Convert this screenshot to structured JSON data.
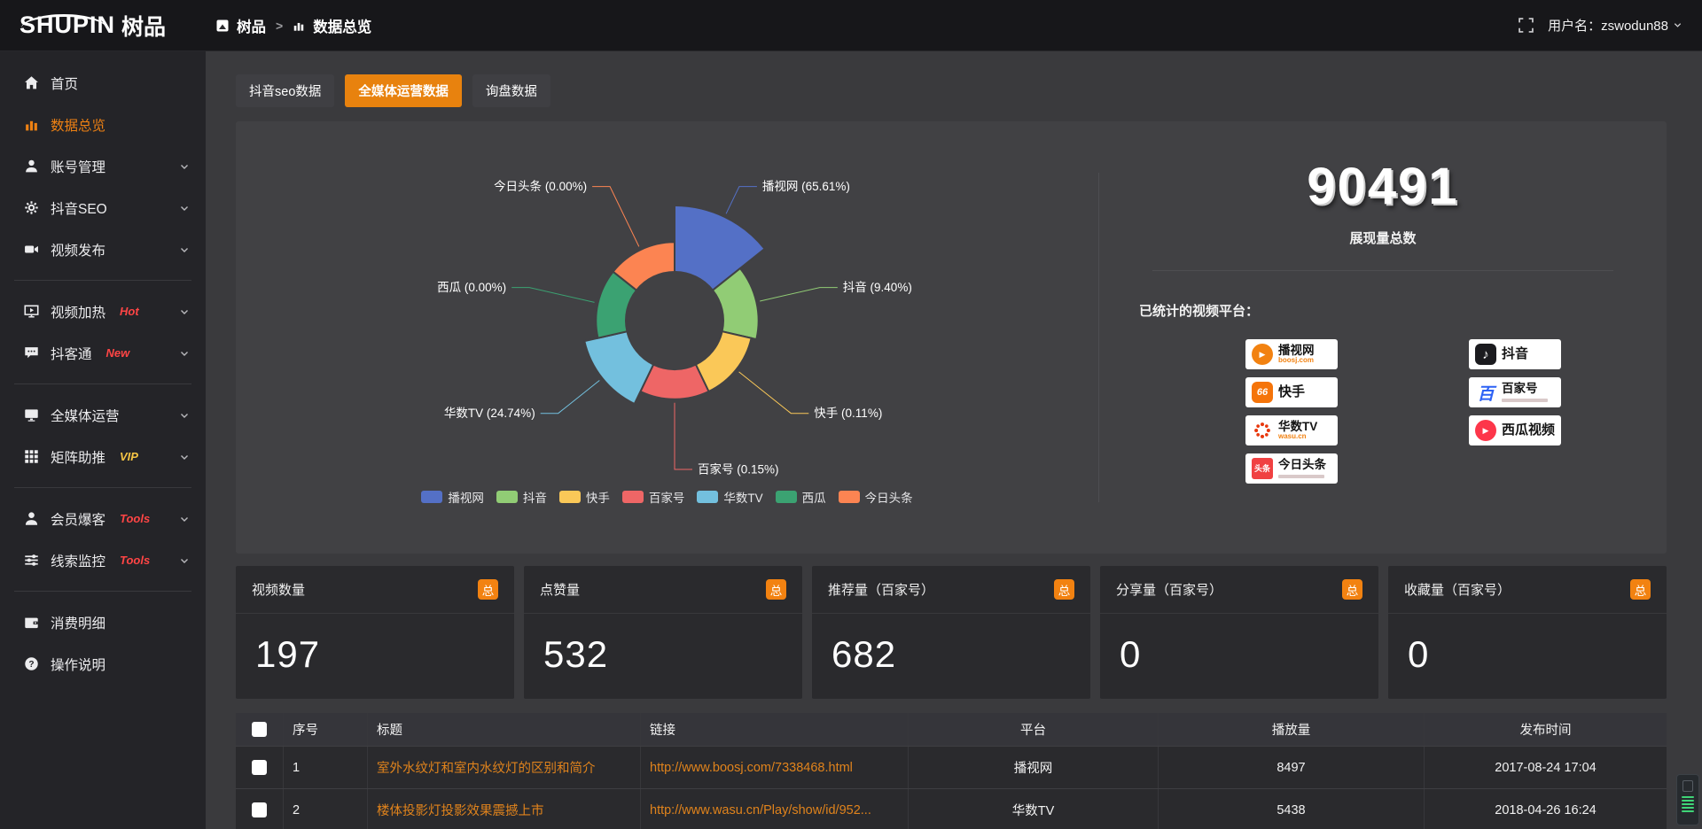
{
  "topbar": {
    "logo_en": "SHUPIN",
    "logo_cn": "树品",
    "breadcrumb": [
      {
        "label": "树品",
        "icon": "brand-icon"
      },
      {
        "label": "数据总览",
        "icon": "bar-chart-icon"
      }
    ],
    "breadcrumb_separator": ">",
    "username": "用户名：zswodun88"
  },
  "sidebar": {
    "groups": [
      {
        "items": [
          {
            "id": "home",
            "label": "首页",
            "icon": "home-icon",
            "icon_key": "home"
          },
          {
            "id": "data-overview",
            "label": "数据总览",
            "icon": "bar-chart-icon",
            "icon_key": "chart",
            "active": true
          },
          {
            "id": "account-manage",
            "label": "账号管理",
            "icon": "user-icon",
            "icon_key": "user",
            "chevron": true
          },
          {
            "id": "douyin-seo",
            "label": "抖音SEO",
            "icon": "gear-icon",
            "icon_key": "gear",
            "chevron": true
          },
          {
            "id": "video-publish",
            "label": "视频发布",
            "icon": "video-icon",
            "icon_key": "video",
            "chevron": true
          }
        ]
      },
      {
        "items": [
          {
            "id": "video-heat",
            "label": "视频加热",
            "badge": "Hot",
            "badge_color": "#ff4545",
            "icon": "monitor-play-icon",
            "icon_key": "heat",
            "chevron": true
          },
          {
            "id": "douketong",
            "label": "抖客通",
            "badge": "New",
            "badge_color": "#ff4545",
            "icon": "chat-icon",
            "icon_key": "chat",
            "chevron": true
          }
        ]
      },
      {
        "items": [
          {
            "id": "media-operation",
            "label": "全媒体运营",
            "icon": "monitor-icon",
            "icon_key": "media",
            "chevron": true
          },
          {
            "id": "matrix-boost",
            "label": "矩阵助推",
            "badge": "VIP",
            "badge_color": "#f6c544",
            "icon": "grid-icon",
            "icon_key": "grid",
            "chevron": true
          }
        ]
      },
      {
        "items": [
          {
            "id": "member-baoke",
            "label": "会员爆客",
            "badge": "Tools",
            "badge_color": "#ff4545",
            "icon": "member-icon",
            "icon_key": "member",
            "chevron": true
          },
          {
            "id": "clue-monitor",
            "label": "线索监控",
            "badge": "Tools",
            "badge_color": "#ff4545",
            "icon": "sliders-icon",
            "icon_key": "sliders",
            "chevron": true
          }
        ]
      },
      {
        "items": [
          {
            "id": "consume-detail",
            "label": "消费明细",
            "icon": "wallet-icon",
            "icon_key": "wallet"
          },
          {
            "id": "help",
            "label": "操作说明",
            "icon": "help-icon",
            "icon_key": "help"
          }
        ]
      }
    ]
  },
  "tabs": [
    {
      "label": "抖音seo数据"
    },
    {
      "label": "全媒体运营数据",
      "active": true
    },
    {
      "label": "询盘数据"
    }
  ],
  "chart_data": {
    "type": "pie",
    "variant": "nightingale-rose",
    "legend_position": "bottom",
    "categories": [
      "播视网",
      "抖音",
      "快手",
      "百家号",
      "华数TV",
      "西瓜",
      "今日头条"
    ],
    "values_percent": [
      65.61,
      9.4,
      0.11,
      0.15,
      24.74,
      0.0,
      0.0
    ],
    "labels": [
      "播视网 (65.61%)",
      "抖音 (9.40%)",
      "快手 (0.11%)",
      "百家号 (0.15%)",
      "华数TV (24.74%)",
      "西瓜 (0.00%)",
      "今日头条 (0.00%)"
    ],
    "colors": [
      "#5470c6",
      "#91cc75",
      "#fac858",
      "#ee6666",
      "#73c0de",
      "#3ba272",
      "#fc8452"
    ]
  },
  "summary": {
    "total": "90491",
    "total_label": "展现量总数",
    "platforms_label": "已统计的视频平台：",
    "platforms": [
      {
        "name": "播视网",
        "sub": "boosj.com",
        "icon": "boosj-icon",
        "icon_cls": "ic-boosj",
        "glyph": "▶",
        "col": 1
      },
      {
        "name": "快手",
        "icon": "kuaishou-icon",
        "icon_cls": "ic-kuaishou",
        "glyph": "66",
        "col": 1
      },
      {
        "name": "华数TV",
        "sub": "wasu.cn",
        "icon": "wasu-icon",
        "icon_cls": "ic-wasu",
        "glyph": "",
        "col": 1
      },
      {
        "name": "今日头条",
        "icon": "toutiao-icon",
        "icon_cls": "ic-toutiao",
        "glyph": "头条",
        "col": 1,
        "sub_bar": true
      },
      {
        "name": "抖音",
        "icon": "douyin-icon",
        "icon_cls": "ic-douyin",
        "glyph": "♪",
        "col": 2
      },
      {
        "name": "百家号",
        "icon": "baijiahao-icon",
        "icon_cls": "ic-baijiahao",
        "glyph": "百",
        "col": 2,
        "sub_bar": true
      },
      {
        "name": "西瓜视频",
        "icon": "xigua-icon",
        "icon_cls": "ic-xigua",
        "glyph": "▶",
        "col": 2
      }
    ]
  },
  "stat_cards": [
    {
      "title": "视频数量",
      "badge": "总",
      "value": "197"
    },
    {
      "title": "点赞量",
      "badge": "总",
      "value": "532"
    },
    {
      "title": "推荐量（百家号）",
      "badge": "总",
      "value": "682"
    },
    {
      "title": "分享量（百家号）",
      "badge": "总",
      "value": "0"
    },
    {
      "title": "收藏量（百家号）",
      "badge": "总",
      "value": "0"
    }
  ],
  "table": {
    "columns": [
      {
        "label": "",
        "type": "checkbox"
      },
      {
        "label": "序号",
        "align": "left"
      },
      {
        "label": "标题",
        "align": "left"
      },
      {
        "label": "链接",
        "align": "left"
      },
      {
        "label": "平台",
        "align": "center"
      },
      {
        "label": "播放量",
        "align": "center"
      },
      {
        "label": "发布时间",
        "align": "center"
      }
    ],
    "rows": [
      {
        "no": "1",
        "title": "室外水纹灯和室内水纹灯的区别和简介",
        "link": "http://www.boosj.com/7338468.html",
        "platform": "播视网",
        "plays": "8497",
        "time": "2017-08-24 17:04"
      },
      {
        "no": "2",
        "title": "楼体投影灯投影效果震撼上市",
        "link": "http://www.wasu.cn/Play/show/id/952...",
        "platform": "华数TV",
        "plays": "5438",
        "time": "2018-04-26 16:24"
      }
    ]
  },
  "colors": {
    "accent": "#e8820e",
    "link": "#e0831c",
    "hot_badge": "#ff4545",
    "vip_badge": "#f6c544",
    "panel_bg": "#414144",
    "card_bg": "#2a2a2d",
    "page_bg": "#3a3a3d",
    "sidebar_bg": "#242428",
    "topbar_bg": "#17171a"
  }
}
